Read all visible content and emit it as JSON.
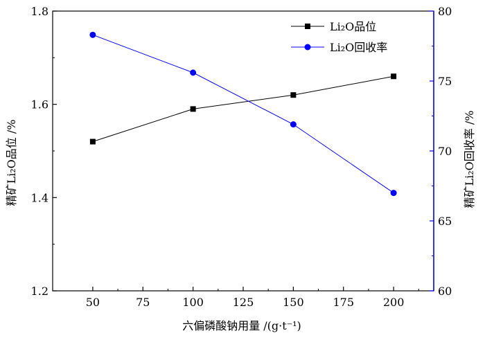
{
  "chart_data": {
    "type": "line",
    "x": [
      50,
      100,
      150,
      200
    ],
    "xlim": [
      30,
      220
    ],
    "xticks": [
      "50",
      "75",
      "100",
      "125",
      "150",
      "175",
      "200"
    ],
    "xlabel": "六偏磷酸钠用量 /(g·t⁻¹)",
    "y_left": {
      "label": "精矿Li₂O品位 /%",
      "lim": [
        1.2,
        1.8
      ],
      "ticks": [
        "1.2",
        "1.4",
        "1.6",
        "1.8"
      ]
    },
    "y_right": {
      "label": "精矿Li₂O回收率 /%",
      "lim": [
        60,
        80
      ],
      "ticks": [
        "60",
        "65",
        "70",
        "75",
        "80"
      ],
      "color": "#0000ff"
    },
    "series": [
      {
        "name": "Li₂O品位",
        "axis": "left",
        "marker": "square",
        "color": "#000000",
        "values": [
          1.52,
          1.59,
          1.62,
          1.66
        ]
      },
      {
        "name": "Li₂O回收率",
        "axis": "right",
        "marker": "circle",
        "color": "#0000ff",
        "values": [
          78.3,
          75.6,
          71.9,
          67.0
        ]
      }
    ],
    "legend_position": "top-right",
    "grid": false
  }
}
